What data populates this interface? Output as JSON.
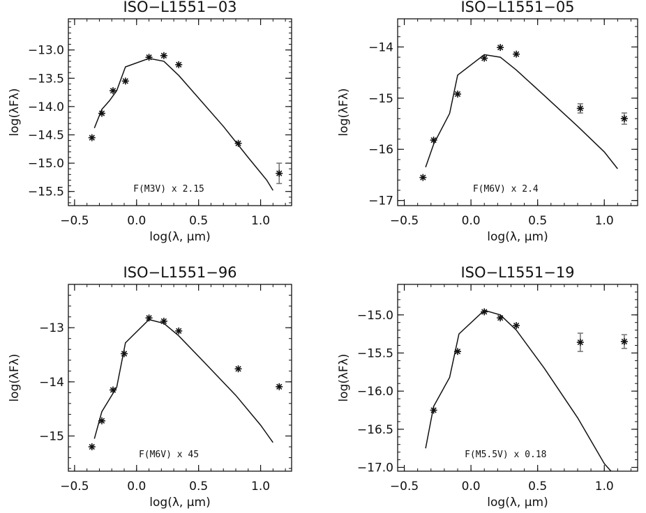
{
  "chart_data": [
    {
      "type": "scatter",
      "title": "ISO−L1551−03",
      "xlabel": "log(λ, μm)",
      "ylabel": "log(λFλ)",
      "annotation": "F(M3V) x 2.15",
      "xlim": [
        -0.55,
        1.25
      ],
      "ylim": [
        -15.75,
        -12.45
      ],
      "xticks": [
        -0.5,
        0.0,
        0.5,
        1.0
      ],
      "xtick_labels": [
        "−0.5",
        "0.0",
        "0.5",
        "1.0"
      ],
      "yticks": [
        -13.0,
        -13.5,
        -14.0,
        -14.5,
        -15.0,
        -15.5
      ],
      "ytick_labels": [
        "−13.0",
        "−13.5",
        "−14.0",
        "−14.5",
        "−15.0",
        "−15.5"
      ],
      "points": [
        {
          "x": -0.36,
          "y": -14.55
        },
        {
          "x": -0.28,
          "y": -14.12
        },
        {
          "x": -0.19,
          "y": -13.72
        },
        {
          "x": -0.09,
          "y": -13.55
        },
        {
          "x": 0.1,
          "y": -13.13
        },
        {
          "x": 0.22,
          "y": -13.1
        },
        {
          "x": 0.34,
          "y": -13.26
        },
        {
          "x": 0.82,
          "y": -14.65
        },
        {
          "x": 1.15,
          "y": -15.18,
          "err": 0.18
        }
      ],
      "model_line": [
        {
          "x": -0.34,
          "y": -14.38
        },
        {
          "x": -0.28,
          "y": -14.05
        },
        {
          "x": -0.22,
          "y": -13.9
        },
        {
          "x": -0.16,
          "y": -13.72
        },
        {
          "x": -0.09,
          "y": -13.3
        },
        {
          "x": 0.1,
          "y": -13.15
        },
        {
          "x": 0.22,
          "y": -13.2
        },
        {
          "x": 0.34,
          "y": -13.45
        },
        {
          "x": 0.5,
          "y": -13.85
        },
        {
          "x": 0.7,
          "y": -14.35
        },
        {
          "x": 0.9,
          "y": -14.9
        },
        {
          "x": 1.05,
          "y": -15.3
        },
        {
          "x": 1.1,
          "y": -15.48
        }
      ]
    },
    {
      "type": "scatter",
      "title": "ISO−L1551−05",
      "xlabel": "log(λ, μm)",
      "ylabel": "log(λFλ)",
      "annotation": "F(M6V) x 2.4",
      "xlim": [
        -0.55,
        1.25
      ],
      "ylim": [
        -17.1,
        -13.45
      ],
      "xticks": [
        -0.5,
        0.0,
        0.5,
        1.0
      ],
      "xtick_labels": [
        "−0.5",
        "0.0",
        "0.5",
        "1.0"
      ],
      "yticks": [
        -14,
        -15,
        -16,
        -17
      ],
      "ytick_labels": [
        "−14",
        "−15",
        "−16",
        "−17"
      ],
      "points": [
        {
          "x": -0.36,
          "y": -16.55
        },
        {
          "x": -0.28,
          "y": -15.82
        },
        {
          "x": -0.1,
          "y": -14.92
        },
        {
          "x": 0.1,
          "y": -14.22
        },
        {
          "x": 0.22,
          "y": -14.01
        },
        {
          "x": 0.34,
          "y": -14.14
        },
        {
          "x": 0.82,
          "y": -15.2,
          "err": 0.09
        },
        {
          "x": 1.15,
          "y": -15.4,
          "err": 0.11
        }
      ],
      "model_line": [
        {
          "x": -0.34,
          "y": -16.35
        },
        {
          "x": -0.28,
          "y": -15.9
        },
        {
          "x": -0.16,
          "y": -15.3
        },
        {
          "x": -0.1,
          "y": -14.55
        },
        {
          "x": 0.1,
          "y": -14.15
        },
        {
          "x": 0.22,
          "y": -14.2
        },
        {
          "x": 0.34,
          "y": -14.45
        },
        {
          "x": 0.55,
          "y": -14.95
        },
        {
          "x": 0.8,
          "y": -15.55
        },
        {
          "x": 1.0,
          "y": -16.05
        },
        {
          "x": 1.1,
          "y": -16.38
        }
      ]
    },
    {
      "type": "scatter",
      "title": "ISO−L1551−96",
      "xlabel": "log(λ, μm)",
      "ylabel": "log(λFλ)",
      "annotation": "F(M6V) x 45",
      "xlim": [
        -0.55,
        1.25
      ],
      "ylim": [
        -15.65,
        -12.2
      ],
      "xticks": [
        -0.5,
        0.0,
        0.5,
        1.0
      ],
      "xtick_labels": [
        "−0.5",
        "0.0",
        "0.5",
        "1.0"
      ],
      "yticks": [
        -13,
        -14,
        -15
      ],
      "ytick_labels": [
        "−13",
        "−14",
        "−15"
      ],
      "points": [
        {
          "x": -0.36,
          "y": -15.2
        },
        {
          "x": -0.28,
          "y": -14.72
        },
        {
          "x": -0.19,
          "y": -14.15
        },
        {
          "x": -0.1,
          "y": -13.48
        },
        {
          "x": 0.1,
          "y": -12.82
        },
        {
          "x": 0.22,
          "y": -12.88
        },
        {
          "x": 0.34,
          "y": -13.06
        },
        {
          "x": 0.82,
          "y": -13.76
        },
        {
          "x": 1.15,
          "y": -14.09
        }
      ],
      "model_line": [
        {
          "x": -0.34,
          "y": -15.05
        },
        {
          "x": -0.28,
          "y": -14.55
        },
        {
          "x": -0.16,
          "y": -14.1
        },
        {
          "x": -0.09,
          "y": -13.28
        },
        {
          "x": 0.1,
          "y": -12.85
        },
        {
          "x": 0.22,
          "y": -12.92
        },
        {
          "x": 0.34,
          "y": -13.15
        },
        {
          "x": 0.55,
          "y": -13.65
        },
        {
          "x": 0.8,
          "y": -14.25
        },
        {
          "x": 1.0,
          "y": -14.8
        },
        {
          "x": 1.1,
          "y": -15.12
        }
      ]
    },
    {
      "type": "scatter",
      "title": "ISO−L1551−19",
      "xlabel": "log(λ, μm)",
      "ylabel": "log(λFλ)",
      "annotation": "F(M5.5V) x 0.18",
      "xlim": [
        -0.55,
        1.25
      ],
      "ylim": [
        -17.05,
        -14.6
      ],
      "xticks": [
        -0.5,
        0.0,
        0.5,
        1.0
      ],
      "xtick_labels": [
        "−0.5",
        "0.0",
        "0.5",
        "1.0"
      ],
      "yticks": [
        -15.0,
        -15.5,
        -16.0,
        -16.5,
        -17.0
      ],
      "ytick_labels": [
        "−15.0",
        "−15.5",
        "−16.0",
        "−16.5",
        "−17.0"
      ],
      "points": [
        {
          "x": -0.28,
          "y": -16.25
        },
        {
          "x": -0.1,
          "y": -15.48
        },
        {
          "x": 0.1,
          "y": -14.96
        },
        {
          "x": 0.22,
          "y": -15.04
        },
        {
          "x": 0.34,
          "y": -15.14
        },
        {
          "x": 0.82,
          "y": -15.36,
          "err": 0.12
        },
        {
          "x": 1.15,
          "y": -15.35,
          "err": 0.09
        }
      ],
      "model_line": [
        {
          "x": -0.34,
          "y": -16.75
        },
        {
          "x": -0.28,
          "y": -16.2
        },
        {
          "x": -0.16,
          "y": -15.82
        },
        {
          "x": -0.09,
          "y": -15.25
        },
        {
          "x": 0.1,
          "y": -14.94
        },
        {
          "x": 0.22,
          "y": -15.0
        },
        {
          "x": 0.34,
          "y": -15.2
        },
        {
          "x": 0.55,
          "y": -15.7
        },
        {
          "x": 0.8,
          "y": -16.35
        },
        {
          "x": 1.0,
          "y": -16.95
        },
        {
          "x": 1.05,
          "y": -17.05
        }
      ]
    }
  ]
}
